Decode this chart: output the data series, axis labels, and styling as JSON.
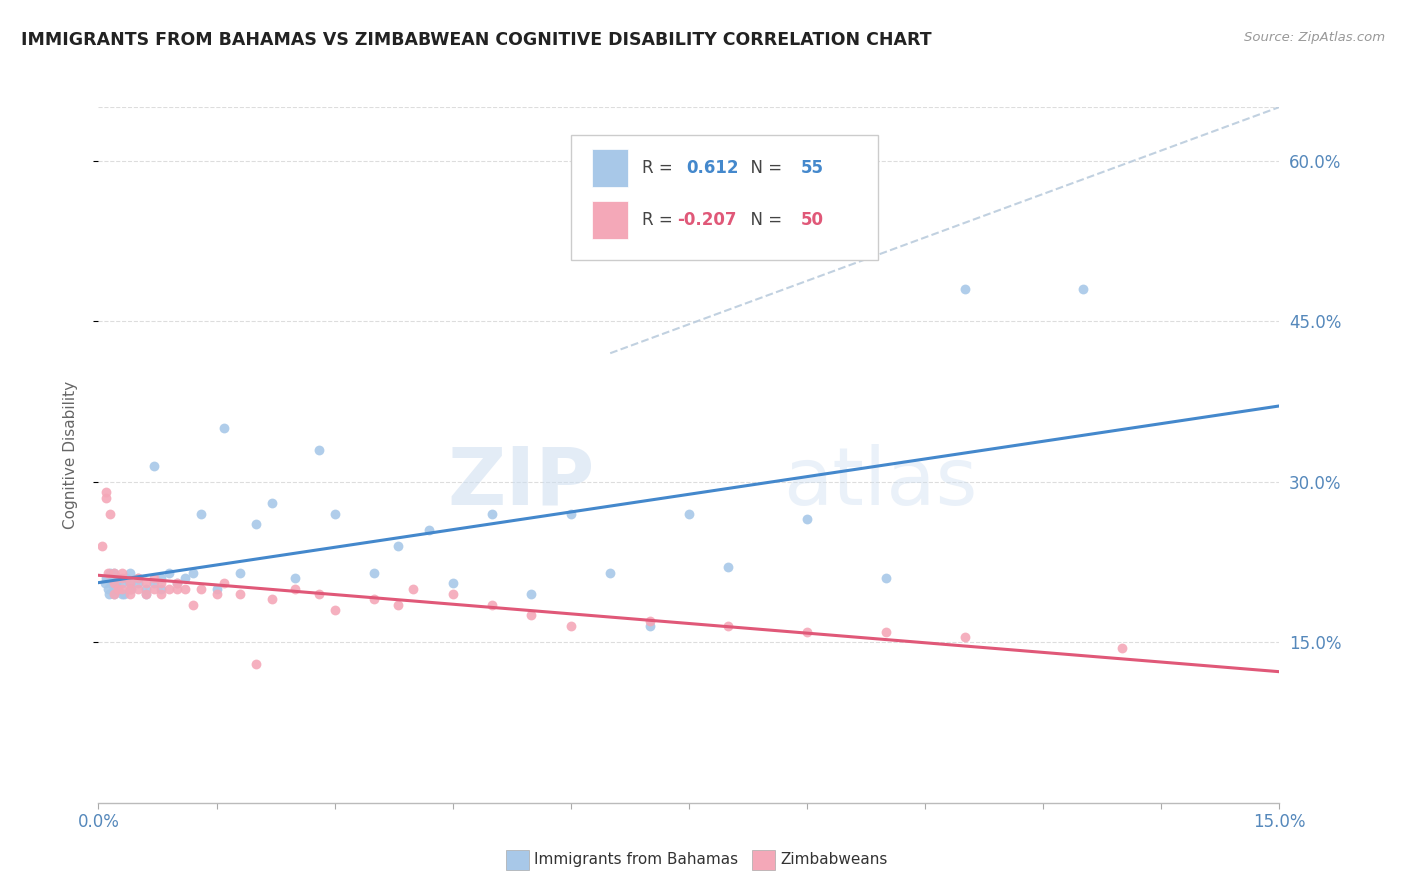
{
  "title": "IMMIGRANTS FROM BAHAMAS VS ZIMBABWEAN COGNITIVE DISABILITY CORRELATION CHART",
  "source": "Source: ZipAtlas.com",
  "ylabel": "Cognitive Disability",
  "legend_label_blue": "Immigrants from Bahamas",
  "legend_label_pink": "Zimbabweans",
  "bahamas_color": "#a8c8e8",
  "zimbabwe_color": "#f4a8b8",
  "trendline_blue_color": "#4488cc",
  "trendline_pink_color": "#e05878",
  "trendline_dashed_color": "#bbccdd",
  "background_color": "#ffffff",
  "watermark_zip": "ZIP",
  "watermark_atlas": "atlas",
  "xlim": [
    0.0,
    0.15
  ],
  "ylim": [
    0.0,
    0.65
  ],
  "r_blue": "0.612",
  "n_blue": "55",
  "r_pink": "-0.207",
  "n_pink": "50",
  "bahamas_x": [
    0.0008,
    0.001,
    0.0012,
    0.0014,
    0.0015,
    0.0016,
    0.0018,
    0.002,
    0.002,
    0.002,
    0.0022,
    0.0025,
    0.003,
    0.003,
    0.0032,
    0.0035,
    0.004,
    0.004,
    0.0042,
    0.005,
    0.005,
    0.006,
    0.006,
    0.007,
    0.007,
    0.008,
    0.008,
    0.009,
    0.01,
    0.011,
    0.012,
    0.013,
    0.015,
    0.016,
    0.018,
    0.02,
    0.022,
    0.025,
    0.028,
    0.03,
    0.035,
    0.038,
    0.042,
    0.045,
    0.05,
    0.055,
    0.06,
    0.065,
    0.07,
    0.075,
    0.08,
    0.09,
    0.1,
    0.11,
    0.125
  ],
  "bahamas_y": [
    0.205,
    0.21,
    0.2,
    0.195,
    0.215,
    0.205,
    0.21,
    0.195,
    0.2,
    0.215,
    0.205,
    0.21,
    0.195,
    0.205,
    0.195,
    0.21,
    0.205,
    0.215,
    0.2,
    0.205,
    0.21,
    0.195,
    0.2,
    0.315,
    0.205,
    0.21,
    0.2,
    0.215,
    0.205,
    0.21,
    0.215,
    0.27,
    0.2,
    0.35,
    0.215,
    0.26,
    0.28,
    0.21,
    0.33,
    0.27,
    0.215,
    0.24,
    0.255,
    0.205,
    0.27,
    0.195,
    0.27,
    0.215,
    0.165,
    0.27,
    0.22,
    0.265,
    0.21,
    0.48,
    0.48
  ],
  "zimbabwe_x": [
    0.0005,
    0.001,
    0.001,
    0.0012,
    0.0015,
    0.002,
    0.002,
    0.002,
    0.0025,
    0.003,
    0.003,
    0.003,
    0.004,
    0.004,
    0.004,
    0.005,
    0.005,
    0.006,
    0.006,
    0.007,
    0.007,
    0.008,
    0.008,
    0.009,
    0.01,
    0.01,
    0.011,
    0.012,
    0.013,
    0.015,
    0.016,
    0.018,
    0.02,
    0.022,
    0.025,
    0.028,
    0.03,
    0.035,
    0.038,
    0.04,
    0.045,
    0.05,
    0.055,
    0.06,
    0.07,
    0.08,
    0.09,
    0.1,
    0.11,
    0.13
  ],
  "zimbabwe_y": [
    0.24,
    0.285,
    0.29,
    0.215,
    0.27,
    0.205,
    0.215,
    0.195,
    0.2,
    0.21,
    0.2,
    0.215,
    0.205,
    0.195,
    0.2,
    0.21,
    0.2,
    0.205,
    0.195,
    0.21,
    0.2,
    0.205,
    0.195,
    0.2,
    0.205,
    0.2,
    0.2,
    0.185,
    0.2,
    0.195,
    0.205,
    0.195,
    0.13,
    0.19,
    0.2,
    0.195,
    0.18,
    0.19,
    0.185,
    0.2,
    0.195,
    0.185,
    0.175,
    0.165,
    0.17,
    0.165,
    0.16,
    0.16,
    0.155,
    0.145
  ]
}
